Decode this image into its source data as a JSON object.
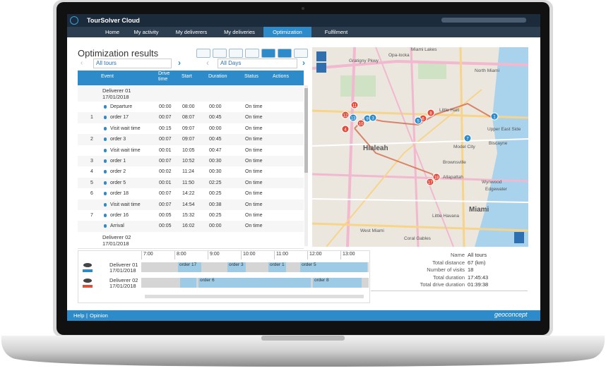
{
  "app": {
    "title": "TourSolver Cloud",
    "nav": [
      "Home",
      "My activity",
      "My deliverers",
      "My deliveries",
      "Optimization",
      "Fulfilment"
    ]
  },
  "panel": {
    "title": "Optimization results",
    "tour": "All tours",
    "day": "All Days"
  },
  "table": {
    "headers": [
      "Event",
      "Drive time",
      "Start",
      "Duration",
      "Status",
      "Actions"
    ],
    "rows": [
      {
        "name": "Deliverer 01",
        "date": "17/01/2018"
      },
      {
        "event": "Departure",
        "drive": "00:00",
        "start": "08:00",
        "duration": "00:00",
        "status": "On time"
      },
      {
        "num": "1",
        "event": "order 17",
        "drive": "00:07",
        "start": "08:07",
        "duration": "00:45",
        "status": "On time"
      },
      {
        "event": "Visit wait time",
        "drive": "00:15",
        "start": "09:07",
        "duration": "00:00",
        "status": "On time"
      },
      {
        "num": "2",
        "event": "order 3",
        "drive": "00:07",
        "start": "09:07",
        "duration": "00:45",
        "status": "On time"
      },
      {
        "event": "Visit wait time",
        "drive": "00:01",
        "start": "10:05",
        "duration": "00:47",
        "status": "On time"
      },
      {
        "num": "3",
        "event": "order 1",
        "drive": "00:07",
        "start": "10:52",
        "duration": "00:30",
        "status": "On time"
      },
      {
        "num": "4",
        "event": "order 2",
        "drive": "00:02",
        "start": "11:24",
        "duration": "00:30",
        "status": "On time"
      },
      {
        "num": "5",
        "event": "order 5",
        "drive": "00:01",
        "start": "11:50",
        "duration": "02:25",
        "status": "On time"
      },
      {
        "num": "6",
        "event": "order 18",
        "drive": "00:07",
        "start": "14:22",
        "duration": "00:25",
        "status": "On time"
      },
      {
        "event": "Visit wait time",
        "drive": "00:07",
        "start": "14:54",
        "duration": "00:38",
        "status": "On time"
      },
      {
        "num": "7",
        "event": "order 16",
        "drive": "00:05",
        "start": "15:32",
        "duration": "00:25",
        "status": "On time"
      },
      {
        "event": "Arrival",
        "drive": "00:05",
        "start": "16:02",
        "duration": "00:00",
        "status": "On time"
      },
      {
        "name": "Deliverer 02",
        "date": "17/01/2018"
      }
    ]
  },
  "gantt": {
    "hours": [
      "7:00",
      "8:00",
      "9:00",
      "10:00",
      "11:00",
      "12:00",
      "13:00"
    ],
    "rows": [
      {
        "name": "Deliverer 01",
        "date": "17/01/2018",
        "bars": [
          "order 17",
          "order 3",
          "order 1",
          "order 5"
        ]
      },
      {
        "name": "Deliverer 02",
        "date": "17/01/2018",
        "bars": [
          "order 6",
          "order 8"
        ]
      }
    ]
  },
  "summary": [
    [
      "Name",
      "All tours"
    ],
    [
      "Total distance",
      "67 (km)"
    ],
    [
      "Number of visits",
      "18"
    ],
    [
      "Total duration",
      "17:45:43"
    ],
    [
      "Total drive duration",
      "01:39:38"
    ]
  ],
  "map": {
    "places": [
      "Miami Lakes",
      "North Miami",
      "Gratigny Pkwy",
      "Opa-locka",
      "Little Haiti",
      "Upper East Side",
      "Biscayne",
      "Model City",
      "Brownsville",
      "Allapattah",
      "Wynwood",
      "Edgewater",
      "Hialeah",
      "Miami",
      "Little Havana",
      "West Miami",
      "Coral Gables"
    ],
    "markers": [
      "11",
      "12",
      "13",
      "10",
      "9",
      "3",
      "4",
      "8",
      "6",
      "5",
      "1",
      "7",
      "18",
      "17"
    ]
  },
  "footer": {
    "links": [
      "Help",
      "Opinion"
    ],
    "brand": "geoconcept"
  }
}
